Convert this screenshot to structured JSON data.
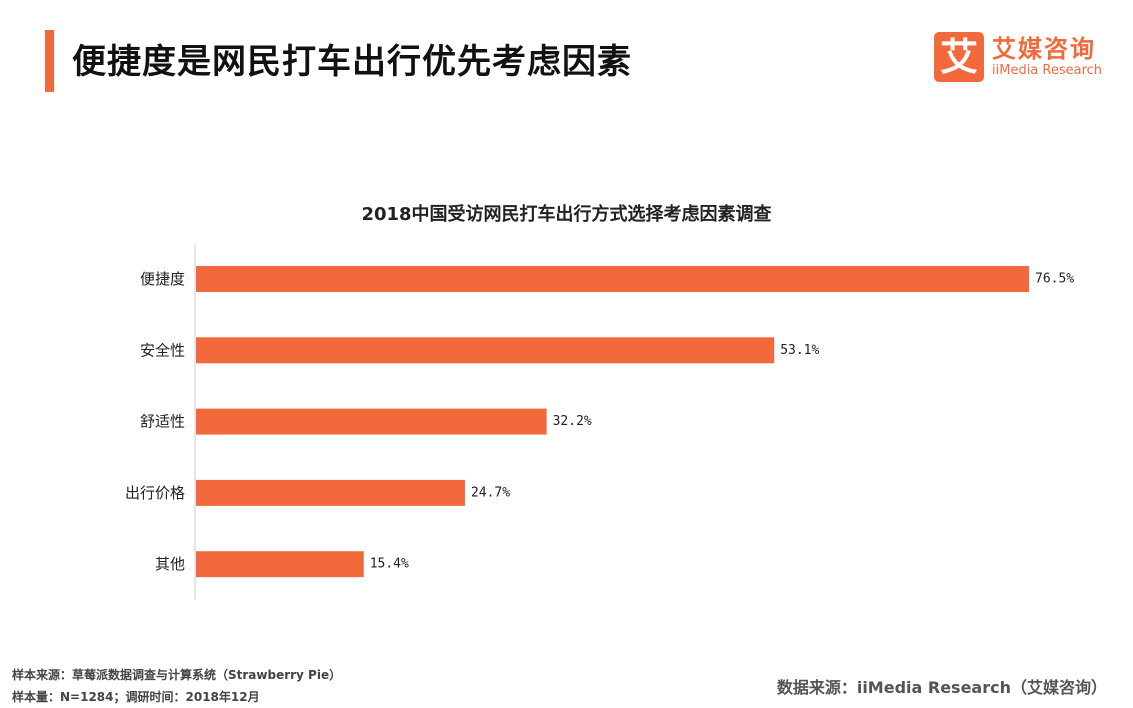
{
  "header": {
    "title": "便捷度是网民打车出行优先考虑因素",
    "logo_mark": "艾",
    "logo_cn": "艾媒咨询",
    "logo_en": "iiMedia Research"
  },
  "chart_data": {
    "type": "bar",
    "orientation": "horizontal",
    "title": "2018中国受访网民打车出行方式选择考虑因素调查",
    "categories": [
      "便捷度",
      "安全性",
      "舒适性",
      "出行价格",
      "其他"
    ],
    "values": [
      76.5,
      53.1,
      32.2,
      24.7,
      15.4
    ],
    "value_labels": [
      "76.5%",
      "53.1%",
      "32.2%",
      "24.7%",
      "15.4%"
    ],
    "xlim": [
      0,
      100
    ],
    "xlabel": "",
    "ylabel": "",
    "grid": false,
    "bar_color": "#f26a3b"
  },
  "footer": {
    "sample_source": "样本来源：草莓派数据调查与计算系统（Strawberry Pie）",
    "sample_size": "样本量：N=1284；调研时间：2018年12月",
    "data_source": "数据来源：iiMedia Research（艾媒咨询）"
  }
}
